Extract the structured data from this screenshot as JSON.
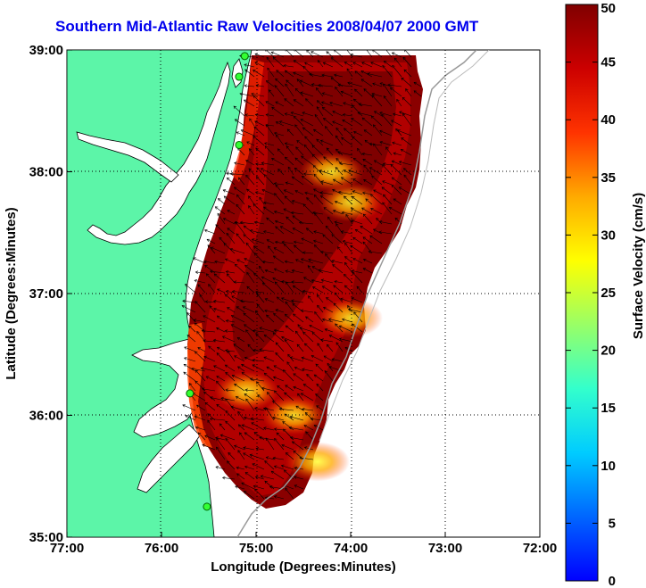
{
  "chart_data": {
    "type": "heatmap",
    "title": "Southern Mid-Atlantic Raw Velocities 2008/04/07 2000 GMT",
    "xlabel": "Longitude (Degrees:Minutes)",
    "ylabel": "Latitude (Degrees:Minutes)",
    "colorbar_label": "Surface Velocity (cm/s)",
    "x_ticks": [
      "77:00",
      "76:00",
      "75:00",
      "74:00",
      "73:00",
      "72:00"
    ],
    "y_ticks": [
      "39:00",
      "38:00",
      "37:00",
      "36:00",
      "35:00"
    ],
    "colorbar_ticks": [
      "0",
      "5",
      "10",
      "15",
      "20",
      "25",
      "30",
      "35",
      "40",
      "45",
      "50"
    ],
    "xlim": [
      -77,
      -72
    ],
    "ylim": [
      35,
      39
    ],
    "clim": [
      0,
      50
    ],
    "grid": true,
    "land_color": "#5cf5a8",
    "colormap": [
      "#0000ff",
      "#0066ff",
      "#00ccff",
      "#33ffcc",
      "#99ff66",
      "#ffff00",
      "#ffaa00",
      "#ff3300",
      "#cc0000",
      "#800000"
    ],
    "stations": [
      {
        "lon": -75.12,
        "lat": 38.95
      },
      {
        "lon": -75.18,
        "lat": 38.78
      },
      {
        "lon": -75.18,
        "lat": 38.22
      },
      {
        "lon": -75.7,
        "lat": 36.18
      },
      {
        "lon": -75.52,
        "lat": 35.25
      }
    ],
    "low_speed_regions": [
      {
        "lon": -74.0,
        "lat": 37.75,
        "speed": 25
      },
      {
        "lon": -74.2,
        "lat": 38.0,
        "speed": 30
      },
      {
        "lon": -75.1,
        "lat": 36.2,
        "speed": 22
      },
      {
        "lon": -74.35,
        "lat": 35.62,
        "speed": 24
      },
      {
        "lon": -74.6,
        "lat": 36.0,
        "speed": 30
      },
      {
        "lon": -74.0,
        "lat": 36.8,
        "speed": 32
      }
    ]
  }
}
